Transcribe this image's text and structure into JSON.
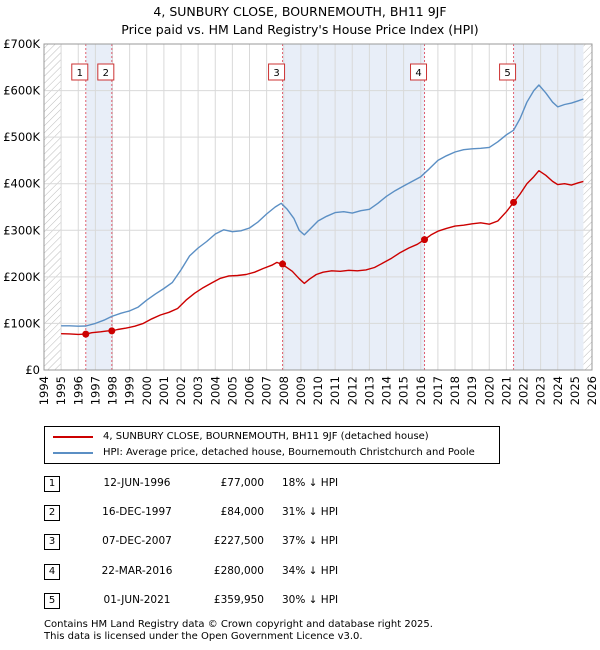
{
  "chart_data": {
    "type": "line",
    "title": "4, SUNBURY CLOSE, BOURNEMOUTH, BH11 9JF",
    "subtitle": "Price paid vs. HM Land Registry's House Price Index (HPI)",
    "xlim": [
      1994,
      2026
    ],
    "ylim": [
      0,
      700000
    ],
    "x_ticks": [
      "1994",
      "1995",
      "1996",
      "1997",
      "1998",
      "1999",
      "2000",
      "2001",
      "2002",
      "2003",
      "2004",
      "2005",
      "2006",
      "2007",
      "2008",
      "2009",
      "2010",
      "2011",
      "2012",
      "2013",
      "2014",
      "2015",
      "2016",
      "2017",
      "2018",
      "2019",
      "2020",
      "2021",
      "2022",
      "2023",
      "2024",
      "2025",
      "2026"
    ],
    "y_ticks": [
      {
        "value": 0,
        "label": "£0"
      },
      {
        "value": 100000,
        "label": "£100K"
      },
      {
        "value": 200000,
        "label": "£200K"
      },
      {
        "value": 300000,
        "label": "£300K"
      },
      {
        "value": 400000,
        "label": "£400K"
      },
      {
        "value": 500000,
        "label": "£500K"
      },
      {
        "value": 600000,
        "label": "£600K"
      },
      {
        "value": 700000,
        "label": "£700K"
      }
    ],
    "grid": true,
    "colors": {
      "property": "#cc0000",
      "hpi": "#5b8fc4",
      "shade": "#e8eef8",
      "vline": "#e06070",
      "hatch": "#999999"
    },
    "series": [
      {
        "name": "4, SUNBURY CLOSE, BOURNEMOUTH, BH11 9JF (detached house)",
        "color": "#cc0000",
        "points": [
          [
            1995.0,
            78000
          ],
          [
            1995.5,
            77500
          ],
          [
            1996.0,
            76500
          ],
          [
            1996.44,
            77000
          ],
          [
            1996.8,
            80000
          ],
          [
            1997.3,
            82000
          ],
          [
            1997.7,
            84000
          ],
          [
            1997.96,
            84000
          ],
          [
            1998.3,
            87000
          ],
          [
            1998.8,
            90000
          ],
          [
            1999.3,
            94000
          ],
          [
            1999.8,
            100000
          ],
          [
            2000.3,
            110000
          ],
          [
            2000.8,
            118000
          ],
          [
            2001.3,
            124000
          ],
          [
            2001.8,
            132000
          ],
          [
            2002.3,
            150000
          ],
          [
            2002.8,
            165000
          ],
          [
            2003.3,
            177000
          ],
          [
            2003.8,
            187000
          ],
          [
            2004.3,
            197000
          ],
          [
            2004.8,
            202000
          ],
          [
            2005.3,
            203000
          ],
          [
            2005.8,
            205000
          ],
          [
            2006.3,
            210000
          ],
          [
            2006.8,
            218000
          ],
          [
            2007.3,
            225000
          ],
          [
            2007.6,
            231000
          ],
          [
            2007.85,
            227500
          ],
          [
            2008.1,
            222000
          ],
          [
            2008.5,
            212000
          ],
          [
            2008.9,
            196000
          ],
          [
            2009.2,
            186000
          ],
          [
            2009.5,
            195000
          ],
          [
            2009.9,
            205000
          ],
          [
            2010.3,
            210000
          ],
          [
            2010.8,
            213000
          ],
          [
            2011.3,
            212000
          ],
          [
            2011.8,
            214000
          ],
          [
            2012.3,
            213000
          ],
          [
            2012.8,
            215000
          ],
          [
            2013.3,
            220000
          ],
          [
            2013.8,
            230000
          ],
          [
            2014.3,
            240000
          ],
          [
            2014.8,
            252000
          ],
          [
            2015.3,
            262000
          ],
          [
            2015.8,
            270000
          ],
          [
            2016.22,
            280000
          ],
          [
            2016.6,
            290000
          ],
          [
            2017.0,
            298000
          ],
          [
            2017.5,
            304000
          ],
          [
            2018.0,
            309000
          ],
          [
            2018.5,
            311000
          ],
          [
            2019.0,
            314000
          ],
          [
            2019.5,
            316000
          ],
          [
            2020.0,
            313000
          ],
          [
            2020.5,
            320000
          ],
          [
            2021.0,
            340000
          ],
          [
            2021.42,
            359950
          ],
          [
            2021.8,
            378000
          ],
          [
            2022.2,
            400000
          ],
          [
            2022.6,
            415000
          ],
          [
            2022.9,
            428000
          ],
          [
            2023.3,
            418000
          ],
          [
            2023.7,
            405000
          ],
          [
            2024.0,
            398000
          ],
          [
            2024.4,
            400000
          ],
          [
            2024.8,
            397000
          ],
          [
            2025.2,
            402000
          ],
          [
            2025.5,
            405000
          ]
        ]
      },
      {
        "name": "HPI: Average price, detached house, Bournemouth Christchurch and Poole",
        "color": "#5b8fc4",
        "points": [
          [
            1995.0,
            95000
          ],
          [
            1995.5,
            95000
          ],
          [
            1996.0,
            94000
          ],
          [
            1996.44,
            94500
          ],
          [
            1997.0,
            100000
          ],
          [
            1997.5,
            107000
          ],
          [
            1997.96,
            115000
          ],
          [
            1998.5,
            122000
          ],
          [
            1999.0,
            127000
          ],
          [
            1999.5,
            135000
          ],
          [
            2000.0,
            150000
          ],
          [
            2000.5,
            163000
          ],
          [
            2001.0,
            175000
          ],
          [
            2001.5,
            188000
          ],
          [
            2002.0,
            215000
          ],
          [
            2002.5,
            245000
          ],
          [
            2003.0,
            262000
          ],
          [
            2003.5,
            276000
          ],
          [
            2004.0,
            292000
          ],
          [
            2004.5,
            301000
          ],
          [
            2005.0,
            297000
          ],
          [
            2005.5,
            299000
          ],
          [
            2006.0,
            305000
          ],
          [
            2006.5,
            318000
          ],
          [
            2007.0,
            335000
          ],
          [
            2007.5,
            350000
          ],
          [
            2007.85,
            358000
          ],
          [
            2008.2,
            345000
          ],
          [
            2008.6,
            325000
          ],
          [
            2008.9,
            300000
          ],
          [
            2009.2,
            290000
          ],
          [
            2009.6,
            305000
          ],
          [
            2010.0,
            320000
          ],
          [
            2010.5,
            330000
          ],
          [
            2011.0,
            338000
          ],
          [
            2011.5,
            340000
          ],
          [
            2012.0,
            337000
          ],
          [
            2012.5,
            342000
          ],
          [
            2013.0,
            345000
          ],
          [
            2013.5,
            358000
          ],
          [
            2014.0,
            373000
          ],
          [
            2014.5,
            385000
          ],
          [
            2015.0,
            395000
          ],
          [
            2015.5,
            405000
          ],
          [
            2016.0,
            415000
          ],
          [
            2016.5,
            432000
          ],
          [
            2017.0,
            450000
          ],
          [
            2017.5,
            460000
          ],
          [
            2018.0,
            468000
          ],
          [
            2018.5,
            473000
          ],
          [
            2019.0,
            475000
          ],
          [
            2019.5,
            476000
          ],
          [
            2020.0,
            478000
          ],
          [
            2020.5,
            490000
          ],
          [
            2021.0,
            505000
          ],
          [
            2021.42,
            515000
          ],
          [
            2021.8,
            540000
          ],
          [
            2022.2,
            575000
          ],
          [
            2022.6,
            600000
          ],
          [
            2022.9,
            612000
          ],
          [
            2023.3,
            595000
          ],
          [
            2023.7,
            575000
          ],
          [
            2024.0,
            565000
          ],
          [
            2024.4,
            570000
          ],
          [
            2024.8,
            573000
          ],
          [
            2025.2,
            578000
          ],
          [
            2025.5,
            582000
          ]
        ]
      }
    ],
    "sales": [
      {
        "label": "1",
        "x": 1996.44,
        "price": 77000
      },
      {
        "label": "2",
        "x": 1997.96,
        "price": 84000
      },
      {
        "label": "3",
        "x": 2007.93,
        "price": 227500
      },
      {
        "label": "4",
        "x": 2016.22,
        "price": 280000
      },
      {
        "label": "5",
        "x": 2021.42,
        "price": 359950
      }
    ],
    "shaded_ranges": [
      [
        1996.44,
        1997.96
      ],
      [
        2007.93,
        2016.22
      ],
      [
        2021.42,
        2025.5
      ]
    ],
    "hatch_ranges": [
      [
        1994,
        1995
      ],
      [
        2025.5,
        2026
      ]
    ]
  },
  "legend": {
    "property_label": "4, SUNBURY CLOSE, BOURNEMOUTH, BH11 9JF (detached house)",
    "hpi_label": "HPI: Average price, detached house, Bournemouth Christchurch and Poole"
  },
  "table": [
    {
      "num": "1",
      "date": "12-JUN-1996",
      "price": "£77,000",
      "hpi": "18% ↓ HPI"
    },
    {
      "num": "2",
      "date": "16-DEC-1997",
      "price": "£84,000",
      "hpi": "31% ↓ HPI"
    },
    {
      "num": "3",
      "date": "07-DEC-2007",
      "price": "£227,500",
      "hpi": "37% ↓ HPI"
    },
    {
      "num": "4",
      "date": "22-MAR-2016",
      "price": "£280,000",
      "hpi": "34% ↓ HPI"
    },
    {
      "num": "5",
      "date": "01-JUN-2021",
      "price": "£359,950",
      "hpi": "30% ↓ HPI"
    }
  ],
  "footer": {
    "line1": "Contains HM Land Registry data © Crown copyright and database right 2025.",
    "line2": "This data is licensed under the Open Government Licence v3.0."
  }
}
